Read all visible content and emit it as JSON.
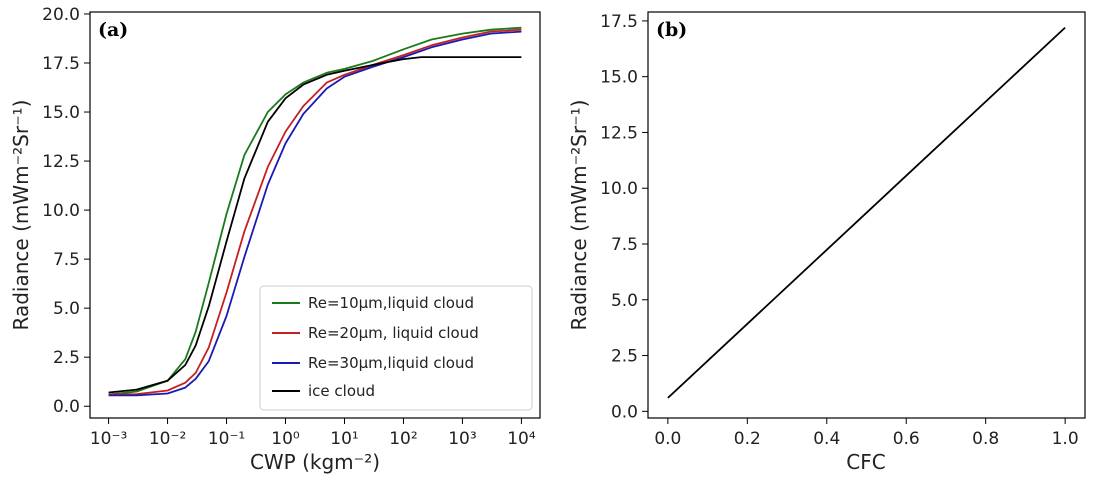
{
  "chart_data": [
    {
      "panel_label": "(a)",
      "type": "line",
      "xscale": "log",
      "xlabel": "CWP (kgm⁻²)",
      "ylabel": "Radiance (mWm⁻²Sr⁻¹)",
      "xlim": [
        0.001,
        10000
      ],
      "ylim": [
        0,
        20
      ],
      "x_ticks": [
        "10⁻³",
        "10⁻²",
        "10⁻¹",
        "10⁰",
        "10¹",
        "10²",
        "10³",
        "10⁴"
      ],
      "y_ticks": [
        "0.0",
        "2.5",
        "5.0",
        "7.5",
        "10.0",
        "12.5",
        "15.0",
        "17.5",
        "20.0"
      ],
      "grid": false,
      "legend_position": "lower-right",
      "series": [
        {
          "name": "Re=10μm,liquid cloud",
          "color": "#1a7a1a",
          "x": [
            0.001,
            0.003,
            0.01,
            0.02,
            0.03,
            0.05,
            0.1,
            0.2,
            0.5,
            1,
            2,
            5,
            10,
            30,
            100,
            300,
            1000,
            3000,
            10000
          ],
          "y": [
            0.6,
            0.75,
            1.3,
            2.4,
            3.8,
            6.3,
            9.8,
            12.8,
            15.0,
            15.9,
            16.5,
            17.0,
            17.2,
            17.6,
            18.2,
            18.7,
            19.0,
            19.2,
            19.3
          ]
        },
        {
          "name": "Re=20μm, liquid cloud",
          "color": "#c42020",
          "x": [
            0.001,
            0.003,
            0.01,
            0.02,
            0.03,
            0.05,
            0.1,
            0.2,
            0.5,
            1,
            2,
            5,
            10,
            30,
            100,
            300,
            1000,
            3000,
            10000
          ],
          "y": [
            0.6,
            0.62,
            0.8,
            1.2,
            1.7,
            3.0,
            5.8,
            8.9,
            12.2,
            14.0,
            15.3,
            16.5,
            16.9,
            17.4,
            17.9,
            18.4,
            18.8,
            19.1,
            19.2
          ]
        },
        {
          "name": "Re=30μm,liquid cloud",
          "color": "#1a1ab4",
          "x": [
            0.001,
            0.003,
            0.01,
            0.02,
            0.03,
            0.05,
            0.1,
            0.2,
            0.5,
            1,
            2,
            5,
            10,
            30,
            100,
            300,
            1000,
            3000,
            10000
          ],
          "y": [
            0.55,
            0.55,
            0.65,
            0.95,
            1.4,
            2.3,
            4.6,
            7.6,
            11.3,
            13.4,
            14.9,
            16.2,
            16.8,
            17.3,
            17.8,
            18.3,
            18.7,
            19.0,
            19.1
          ]
        },
        {
          "name": "ice cloud",
          "color": "#000000",
          "x": [
            0.001,
            0.003,
            0.01,
            0.02,
            0.03,
            0.05,
            0.1,
            0.2,
            0.5,
            1,
            2,
            5,
            10,
            30,
            100,
            200,
            300,
            1000,
            3000,
            10000
          ],
          "y": [
            0.7,
            0.85,
            1.3,
            2.1,
            3.1,
            5.1,
            8.4,
            11.6,
            14.5,
            15.7,
            16.4,
            16.9,
            17.1,
            17.4,
            17.7,
            17.8,
            17.8,
            17.8,
            17.8,
            17.8
          ]
        }
      ]
    },
    {
      "panel_label": "(b)",
      "type": "line",
      "xlabel": "CFC",
      "ylabel": "Radiance (mWm⁻²Sr⁻¹)",
      "xlim": [
        -0.05,
        1.05
      ],
      "ylim": [
        -0.3,
        17.9
      ],
      "x_ticks": [
        "0.0",
        "0.2",
        "0.4",
        "0.6",
        "0.8",
        "1.0"
      ],
      "y_ticks": [
        "0.0",
        "2.5",
        "5.0",
        "7.5",
        "10.0",
        "12.5",
        "15.0",
        "17.5"
      ],
      "grid": false,
      "series": [
        {
          "color": "#000000",
          "x": [
            0.0,
            1.0
          ],
          "y": [
            0.6,
            17.2
          ]
        }
      ]
    }
  ]
}
